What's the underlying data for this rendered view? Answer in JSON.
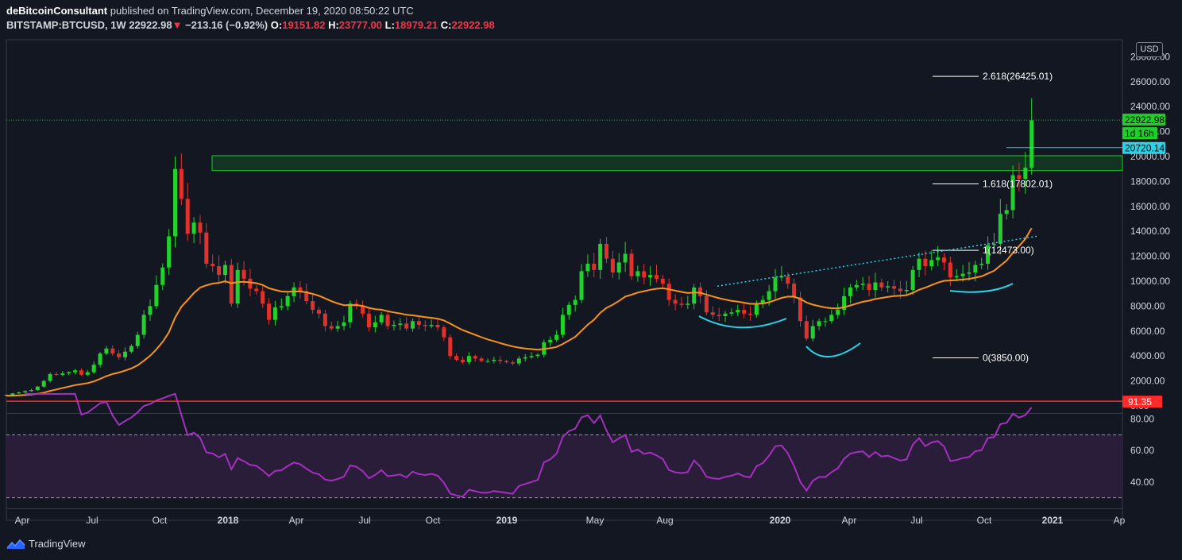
{
  "header": {
    "author": "deBitcoinConsultant",
    "published": "published on TradingView.com, December 19, 2020 08:50:22 UTC",
    "symbol": "BITSTAMP:BTCUSD, 1W",
    "last": "22922.98",
    "change": "−213.16 (−0.92%)",
    "o_label": "O:",
    "o": "19151.82",
    "h_label": "H:",
    "h": "23777.00",
    "l_label": "L:",
    "l": "18979.21",
    "c_label": "C:",
    "c": "22922.98"
  },
  "brand": "TradingView",
  "currency": "USD",
  "colors": {
    "background": "#131722",
    "up": "#22d12c",
    "down": "#e0322b",
    "ema": "#f7931a",
    "rsi": "#a52fbf",
    "rsi_band": "#2a1d3a",
    "cyan": "#2ad3e6",
    "zone": "#20ce2a",
    "overbought_line": "#ff2a2a"
  },
  "chart_data": {
    "type": "candlestick",
    "ylim": [
      0,
      28000
    ],
    "yticks": [
      "28000.00",
      "26000.00",
      "24000.00",
      "22000.00",
      "20000.00",
      "18000.00",
      "16000.00",
      "14000.00",
      "12000.00",
      "10000.00",
      "8000.00",
      "6000.00",
      "4000.00",
      "2000.00",
      "0.00"
    ],
    "xticks": [
      "Apr",
      "Jul",
      "Oct",
      "2018",
      "Apr",
      "Jul",
      "Oct",
      "2019",
      "May",
      "Aug",
      "2020",
      "Apr",
      "Jul",
      "Oct",
      "2021",
      "Ap"
    ],
    "price_labels": [
      {
        "value": "22922.98",
        "kind": "last"
      },
      {
        "value": "1d 16h",
        "kind": "countdown"
      },
      {
        "value": "20720.14",
        "kind": "level"
      }
    ],
    "fib_levels": [
      {
        "label": "2.618(26425.01)",
        "value": 26425.01
      },
      {
        "label": "1.618(17802.01)",
        "value": 17802.01
      },
      {
        "label": "1(12473.00)",
        "value": 12473.0
      },
      {
        "label": "0(3850.00)",
        "value": 3850.0
      }
    ],
    "resistance_zone": [
      19000,
      20000
    ],
    "weekly_close": [
      890,
      1000,
      1080,
      1180,
      1270,
      1550,
      2000,
      2550,
      2480,
      2600,
      2700,
      2850,
      2500,
      2700,
      3300,
      4200,
      4600,
      4200,
      3900,
      4350,
      4800,
      5700,
      7300,
      8000,
      9700,
      11100,
      13600,
      19000,
      16600,
      13800,
      14700,
      13900,
      11400,
      11200,
      10500,
      11300,
      8200,
      10900,
      10200,
      9400,
      9200,
      8200,
      6900,
      7900,
      8000,
      8800,
      9500,
      9200,
      8400,
      7700,
      7400,
      6400,
      6200,
      6400,
      6700,
      8200,
      8000,
      7400,
      6300,
      6700,
      7300,
      6400,
      6500,
      6600,
      6200,
      6800,
      6500,
      6400,
      6500,
      6300,
      5500,
      4000,
      3700,
      3500,
      4000,
      3800,
      3600,
      3600,
      3700,
      3600,
      3500,
      3400,
      3800,
      3900,
      4000,
      4100,
      5100,
      5300,
      5700,
      7300,
      8100,
      8500,
      10800,
      11400,
      10900,
      13000,
      11800,
      10700,
      11500,
      12200,
      10400,
      10800,
      10300,
      10500,
      10200,
      9800,
      8500,
      8200,
      8100,
      8200,
      9500,
      8800,
      7500,
      7300,
      7200,
      7400,
      7500,
      7700,
      7400,
      7300,
      8200,
      8500,
      9200,
      10300,
      10400,
      9800,
      8700,
      6800,
      5400,
      6400,
      6800,
      6800,
      7300,
      7700,
      8800,
      9500,
      9700,
      9800,
      9300,
      9900,
      9500,
      9600,
      9400,
      9200,
      9300,
      10900,
      11800,
      11200,
      11700,
      11900,
      11500,
      10300,
      10400,
      10600,
      10700,
      11300,
      11400,
      12900,
      13000,
      15400,
      15700,
      18500,
      18200,
      19100,
      22900
    ],
    "ema_label": "EMA",
    "rsi": {
      "ylim": [
        20,
        100
      ],
      "yticks": [
        "80.00",
        "60.00",
        "40.00"
      ],
      "last": "91.35",
      "overbought": 70,
      "oversold": 30
    }
  }
}
